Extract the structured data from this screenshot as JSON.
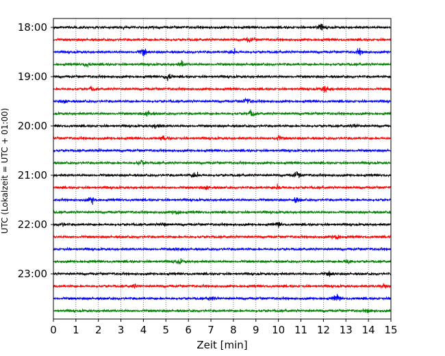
{
  "chart_data": {
    "type": "line",
    "title": "",
    "xlabel": "Zeit  [min]",
    "ylabel": "UTC (Lokalzeit = UTC + 01:00)",
    "xlim": [
      0,
      15
    ],
    "x_ticks": [
      0,
      1,
      2,
      3,
      4,
      5,
      6,
      7,
      8,
      9,
      10,
      11,
      12,
      13,
      14,
      15
    ],
    "x_grid": "dotted vertical lines at each minute",
    "y_tick_labels": [
      "18:00",
      "19:00",
      "20:00",
      "21:00",
      "22:00",
      "23:00"
    ],
    "trace_interval_min": 15,
    "start_time": "18:00",
    "end_time": "23:45",
    "trace_colors": [
      "#000000",
      "#ff0000",
      "#0000ff",
      "#008000"
    ],
    "traces": [
      {
        "start": "18:00",
        "color": "#000000",
        "events": [
          {
            "t": 11.9,
            "amp": 0.9
          }
        ]
      },
      {
        "start": "18:15",
        "color": "#ff0000",
        "events": [
          {
            "t": 8.7,
            "amp": 0.8
          }
        ]
      },
      {
        "start": "18:30",
        "color": "#0000ff",
        "events": [
          {
            "t": 4.0,
            "amp": 0.9
          },
          {
            "t": 8.0,
            "amp": 0.8
          },
          {
            "t": 13.6,
            "amp": 0.8
          }
        ]
      },
      {
        "start": "18:45",
        "color": "#008000",
        "events": [
          {
            "t": 1.5,
            "amp": 0.8
          },
          {
            "t": 5.7,
            "amp": 0.8
          }
        ]
      },
      {
        "start": "19:00",
        "color": "#000000",
        "events": [
          {
            "t": 5.1,
            "amp": 1.3
          }
        ]
      },
      {
        "start": "19:15",
        "color": "#ff0000",
        "events": [
          {
            "t": 12.1,
            "amp": 1.2
          },
          {
            "t": 1.7,
            "amp": 0.6
          }
        ]
      },
      {
        "start": "19:30",
        "color": "#0000ff",
        "events": [
          {
            "t": 8.6,
            "amp": 0.9
          },
          {
            "t": 0.5,
            "amp": 0.5
          }
        ]
      },
      {
        "start": "19:45",
        "color": "#008000",
        "events": [
          {
            "t": 8.8,
            "amp": 1.0
          },
          {
            "t": 4.2,
            "amp": 0.9
          }
        ]
      },
      {
        "start": "20:00",
        "color": "#000000",
        "events": [
          {
            "t": 13.4,
            "amp": 0.6
          },
          {
            "t": 4.6,
            "amp": 0.6
          }
        ]
      },
      {
        "start": "20:15",
        "color": "#ff0000",
        "events": [
          {
            "t": 10.0,
            "amp": 0.7
          },
          {
            "t": 4.9,
            "amp": 0.6
          }
        ]
      },
      {
        "start": "20:30",
        "color": "#0000ff",
        "events": [
          {
            "t": 2.0,
            "amp": 0.4
          }
        ]
      },
      {
        "start": "20:45",
        "color": "#008000",
        "events": [
          {
            "t": 3.9,
            "amp": 0.8
          }
        ]
      },
      {
        "start": "21:00",
        "color": "#000000",
        "events": [
          {
            "t": 6.3,
            "amp": 1.0
          },
          {
            "t": 10.8,
            "amp": 0.9
          }
        ]
      },
      {
        "start": "21:15",
        "color": "#ff0000",
        "events": [
          {
            "t": 10.0,
            "amp": 0.7
          },
          {
            "t": 6.8,
            "amp": 0.6
          }
        ]
      },
      {
        "start": "21:30",
        "color": "#0000ff",
        "events": [
          {
            "t": 1.7,
            "amp": 0.9
          },
          {
            "t": 10.8,
            "amp": 0.6
          }
        ]
      },
      {
        "start": "21:45",
        "color": "#008000",
        "events": [
          {
            "t": 5.5,
            "amp": 0.7
          }
        ]
      },
      {
        "start": "22:00",
        "color": "#000000",
        "events": [
          {
            "t": 4.9,
            "amp": 0.6
          },
          {
            "t": 10.0,
            "amp": 0.6
          },
          {
            "t": 0.4,
            "amp": 0.5
          }
        ]
      },
      {
        "start": "22:15",
        "color": "#ff0000",
        "events": [
          {
            "t": 12.6,
            "amp": 0.9
          }
        ]
      },
      {
        "start": "22:30",
        "color": "#0000ff",
        "events": [
          {
            "t": 5.5,
            "amp": 0.4
          }
        ]
      },
      {
        "start": "22:45",
        "color": "#008000",
        "events": [
          {
            "t": 5.6,
            "amp": 0.8
          },
          {
            "t": 13.1,
            "amp": 0.8
          }
        ]
      },
      {
        "start": "23:00",
        "color": "#000000",
        "events": [
          {
            "t": 12.3,
            "amp": 0.5
          }
        ]
      },
      {
        "start": "23:15",
        "color": "#ff0000",
        "events": [
          {
            "t": 14.7,
            "amp": 0.9
          },
          {
            "t": 3.6,
            "amp": 0.5
          }
        ]
      },
      {
        "start": "23:30",
        "color": "#0000ff",
        "events": [
          {
            "t": 12.6,
            "amp": 1.0
          },
          {
            "t": 7.0,
            "amp": 0.7
          }
        ]
      },
      {
        "start": "23:45",
        "color": "#008000",
        "events": [
          {
            "t": 14.0,
            "amp": 0.5
          }
        ]
      }
    ],
    "grid": true,
    "legend": "none"
  }
}
